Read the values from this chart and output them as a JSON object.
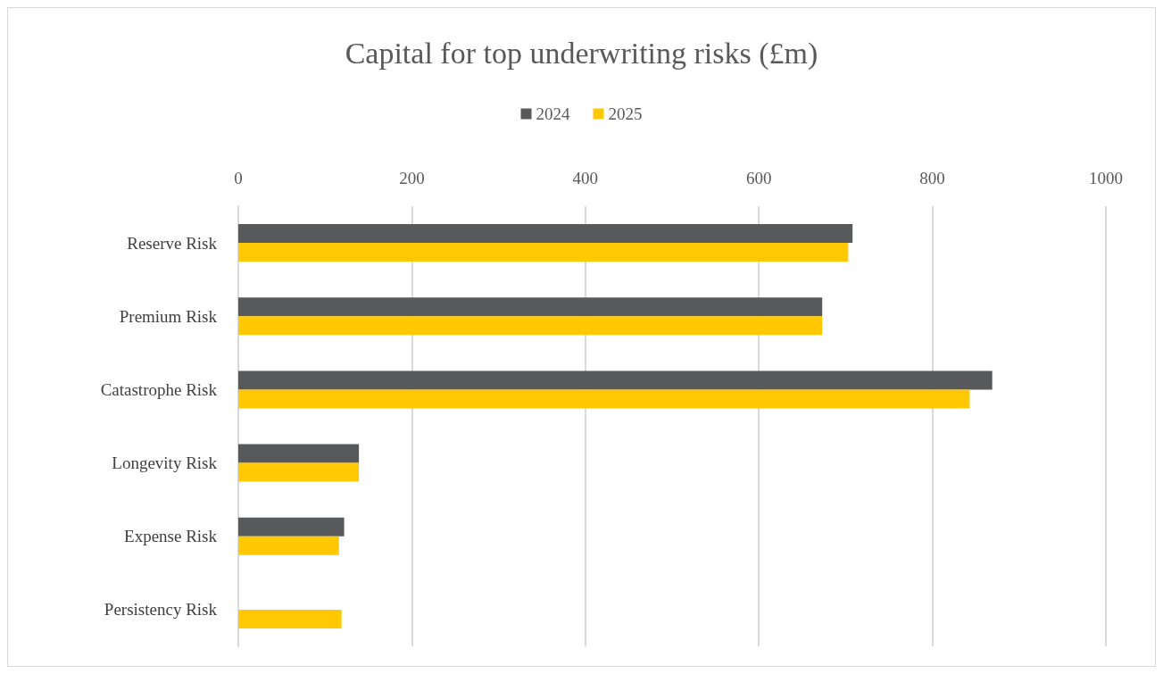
{
  "chart_data": {
    "type": "bar",
    "orientation": "horizontal",
    "title": "Capital for top underwriting risks (£m)",
    "categories": [
      "Reserve Risk",
      "Premium Risk",
      "Catastrophe Risk",
      "Longevity Risk",
      "Expense Risk",
      "Persistency Risk"
    ],
    "series": [
      {
        "name": "2024",
        "color": "#58595b",
        "values": [
          708,
          673,
          869,
          139,
          122,
          null
        ]
      },
      {
        "name": "2025",
        "color": "#ffc800",
        "values": [
          703,
          673,
          843,
          139,
          116,
          119
        ]
      }
    ],
    "xlim": [
      0,
      1000
    ],
    "xticks": [
      0,
      200,
      400,
      600,
      800,
      1000
    ],
    "grid": "x",
    "legend": "top"
  }
}
